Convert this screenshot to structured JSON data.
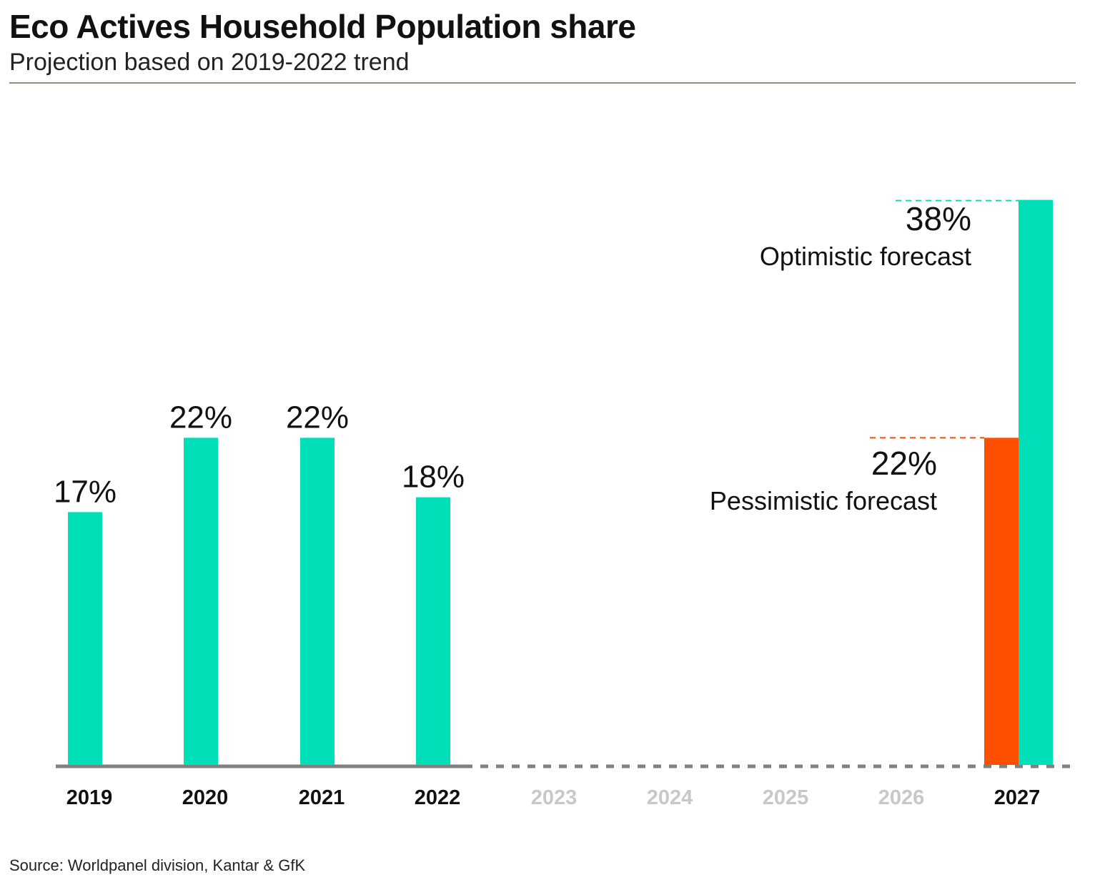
{
  "title": "Eco Actives Household Population share",
  "subtitle": "Projection based on 2019-2022 trend",
  "source": "Source: Worldpanel division, Kantar & GfK",
  "colors": {
    "actual": "#00e0b8",
    "optimistic": "#00e0b8",
    "pessimistic": "#ff5000",
    "axis": "#808080",
    "future_label": "#c8c8c8",
    "text": "#111111"
  },
  "chart_data": {
    "type": "bar",
    "categories": [
      "2019",
      "2020",
      "2021",
      "2022",
      "2023",
      "2024",
      "2025",
      "2026",
      "2027"
    ],
    "actual": {
      "values": [
        17,
        22,
        22,
        18,
        null,
        null,
        null,
        null,
        null
      ],
      "labels": [
        "17%",
        "22%",
        "22%",
        "18%",
        "",
        "",
        "",
        "",
        ""
      ]
    },
    "forecasts": [
      {
        "category": "2027",
        "value": 22,
        "label": "22%",
        "name": "Pessimistic forecast",
        "color": "#ff5000"
      },
      {
        "category": "2027",
        "value": 38,
        "label": "38%",
        "name": "Optimistic forecast",
        "color": "#00e0b8"
      }
    ],
    "bold_categories": [
      "2019",
      "2020",
      "2021",
      "2022",
      "2027"
    ],
    "muted_categories": [
      "2023",
      "2024",
      "2025",
      "2026"
    ],
    "ylim": [
      0,
      40
    ],
    "grid": false
  }
}
